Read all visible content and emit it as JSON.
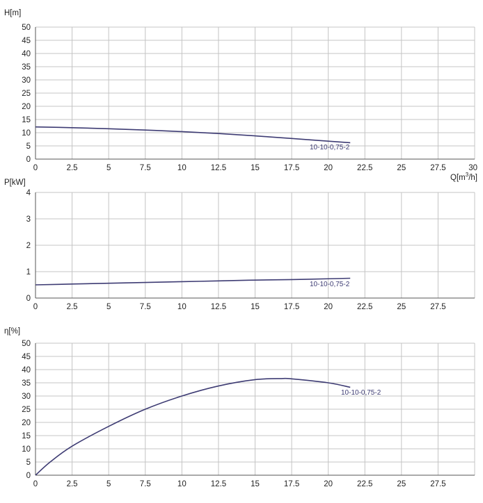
{
  "chart_data": [
    {
      "type": "line",
      "ylabel": "H[m]",
      "xlabel_main": "Q[m",
      "xlabel_sup": "3",
      "xlabel_tail": "/h]",
      "xlim": [
        0,
        30
      ],
      "ylim": [
        0,
        50
      ],
      "xticks": [
        "0",
        "2.5",
        "5",
        "7.5",
        "10",
        "12.5",
        "15",
        "17.5",
        "20",
        "22.5",
        "25",
        "27.5",
        "30"
      ],
      "yticks": [
        "0",
        "5",
        "10",
        "15",
        "20",
        "25",
        "30",
        "35",
        "40",
        "45",
        "50"
      ],
      "grid": true,
      "series": [
        {
          "name": "10-10-0,75-2",
          "x": [
            0,
            2.5,
            5,
            7.5,
            10,
            12.5,
            15,
            17.5,
            20,
            21.5
          ],
          "y": [
            12.2,
            11.9,
            11.5,
            11.0,
            10.4,
            9.7,
            8.8,
            7.8,
            6.8,
            6.2
          ]
        }
      ]
    },
    {
      "type": "line",
      "ylabel": "P[kW]",
      "xlim": [
        0,
        30
      ],
      "ylim": [
        0,
        4
      ],
      "xticks": [
        "0",
        "2.5",
        "5",
        "7.5",
        "10",
        "12.5",
        "15",
        "17.5",
        "20",
        "22.5",
        "25",
        "27.5"
      ],
      "yticks": [
        "0",
        "1",
        "2",
        "3",
        "4"
      ],
      "grid": true,
      "series": [
        {
          "name": "10-10-0,75-2",
          "x": [
            0,
            2.5,
            5,
            7.5,
            10,
            12.5,
            15,
            17.5,
            20,
            21.5
          ],
          "y": [
            0.5,
            0.53,
            0.56,
            0.59,
            0.62,
            0.65,
            0.68,
            0.7,
            0.73,
            0.75
          ]
        }
      ]
    },
    {
      "type": "line",
      "ylabel": "η[%]",
      "xlim": [
        0,
        30
      ],
      "ylim": [
        0,
        50
      ],
      "xticks": [
        "0",
        "2.5",
        "5",
        "7.5",
        "10",
        "12.5",
        "15",
        "17.5",
        "20",
        "22.5",
        "25",
        "27.5"
      ],
      "yticks": [
        "0",
        "5",
        "10",
        "15",
        "20",
        "25",
        "30",
        "35",
        "40",
        "45",
        "50"
      ],
      "grid": true,
      "series": [
        {
          "name": "10-10-0,75-2",
          "x": [
            0,
            1,
            2.5,
            5,
            7.5,
            10,
            12.5,
            15,
            16.8,
            17.5,
            20,
            21.5
          ],
          "y": [
            0,
            5,
            11,
            18.5,
            25,
            30,
            33.8,
            36.2,
            36.6,
            36.5,
            35,
            33.3
          ]
        }
      ]
    }
  ],
  "colors": {
    "curve": "#3d3b73",
    "grid": "#c4c4c4",
    "text": "#222222"
  }
}
